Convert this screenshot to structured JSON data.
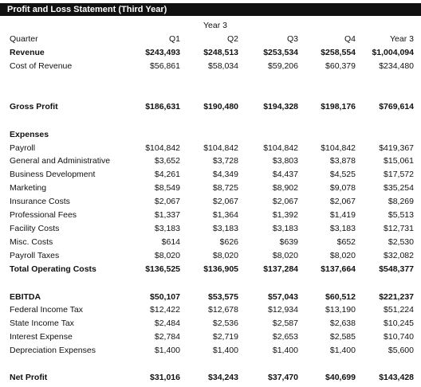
{
  "title": "Profit and Loss Statement (Third Year)",
  "year_header": "Year 3",
  "columns": [
    "Q1",
    "Q2",
    "Q3",
    "Q4",
    "Year 3"
  ],
  "quarter_label": "Quarter",
  "rows": [
    {
      "label": "Revenue",
      "bold": true,
      "values": [
        "$243,493",
        "$248,513",
        "$253,534",
        "$258,554",
        "$1,004,094"
      ]
    },
    {
      "label": "Cost of Revenue",
      "bold": false,
      "values": [
        "$56,861",
        "$58,034",
        "$59,206",
        "$60,379",
        "$234,480"
      ]
    },
    {
      "label": "Gross Profit",
      "bold": true,
      "values": [
        "$186,631",
        "$190,480",
        "$194,328",
        "$198,176",
        "$769,614"
      ]
    },
    {
      "label": "Expenses",
      "bold": true,
      "values": [
        "",
        "",
        "",
        "",
        ""
      ]
    },
    {
      "label": "Payroll",
      "bold": false,
      "values": [
        "$104,842",
        "$104,842",
        "$104,842",
        "$104,842",
        "$419,367"
      ]
    },
    {
      "label": "General and Administrative",
      "bold": false,
      "values": [
        "$3,652",
        "$3,728",
        "$3,803",
        "$3,878",
        "$15,061"
      ]
    },
    {
      "label": "Business Development",
      "bold": false,
      "values": [
        "$4,261",
        "$4,349",
        "$4,437",
        "$4,525",
        "$17,572"
      ]
    },
    {
      "label": "Marketing",
      "bold": false,
      "values": [
        "$8,549",
        "$8,725",
        "$8,902",
        "$9,078",
        "$35,254"
      ]
    },
    {
      "label": "Insurance Costs",
      "bold": false,
      "values": [
        "$2,067",
        "$2,067",
        "$2,067",
        "$2,067",
        "$8,269"
      ]
    },
    {
      "label": "Professional Fees",
      "bold": false,
      "values": [
        "$1,337",
        "$1,364",
        "$1,392",
        "$1,419",
        "$5,513"
      ]
    },
    {
      "label": "Facility Costs",
      "bold": false,
      "values": [
        "$3,183",
        "$3,183",
        "$3,183",
        "$3,183",
        "$12,731"
      ]
    },
    {
      "label": "Misc. Costs",
      "bold": false,
      "values": [
        "$614",
        "$626",
        "$639",
        "$652",
        "$2,530"
      ]
    },
    {
      "label": "Payroll Taxes",
      "bold": false,
      "values": [
        "$8,020",
        "$8,020",
        "$8,020",
        "$8,020",
        "$32,082"
      ]
    },
    {
      "label": "Total Operating Costs",
      "bold": true,
      "values": [
        "$136,525",
        "$136,905",
        "$137,284",
        "$137,664",
        "$548,377"
      ]
    },
    {
      "label": "EBITDA",
      "bold": true,
      "values": [
        "$50,107",
        "$53,575",
        "$57,043",
        "$60,512",
        "$221,237"
      ]
    },
    {
      "label": "Federal Income Tax",
      "bold": false,
      "values": [
        "$12,422",
        "$12,678",
        "$12,934",
        "$13,190",
        "$51,224"
      ]
    },
    {
      "label": "State Income Tax",
      "bold": false,
      "values": [
        "$2,484",
        "$2,536",
        "$2,587",
        "$2,638",
        "$10,245"
      ]
    },
    {
      "label": "Interest Expense",
      "bold": false,
      "values": [
        "$2,784",
        "$2,719",
        "$2,653",
        "$2,585",
        "$10,740"
      ]
    },
    {
      "label": "Depreciation Expenses",
      "bold": false,
      "values": [
        "$1,400",
        "$1,400",
        "$1,400",
        "$1,400",
        "$5,600"
      ]
    },
    {
      "label": "Net Profit",
      "bold": true,
      "values": [
        "$31,016",
        "$34,243",
        "$37,470",
        "$40,699",
        "$143,428"
      ]
    }
  ]
}
